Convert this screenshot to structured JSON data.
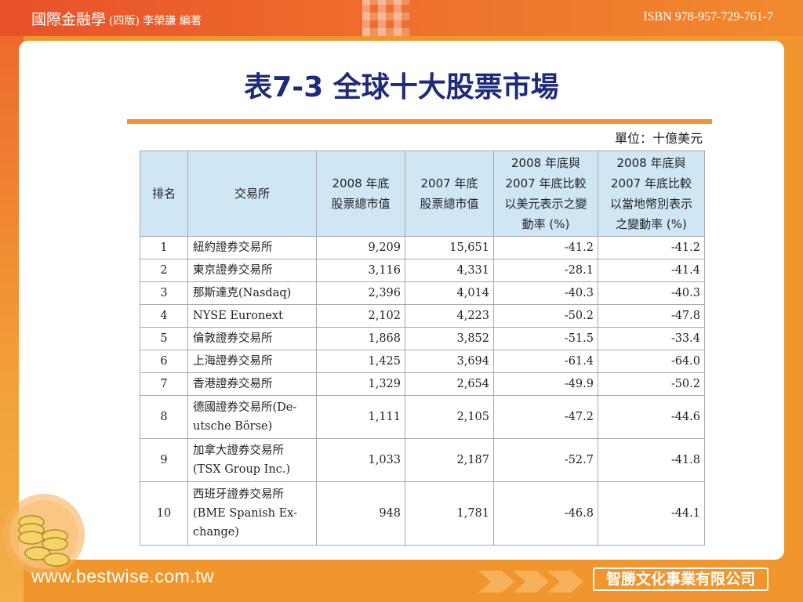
{
  "header": {
    "book_title": "國際金融學",
    "edition_author": "(四版) 李榮謙 編著",
    "isbn": "ISBN 978-957-729-761-7"
  },
  "title": "表7-3 全球十大股票市場",
  "unit_label": "單位：十億美元",
  "table": {
    "headers": {
      "rank": "排名",
      "exchange": "交易所",
      "cap2008": [
        "2008 年底",
        "股票總市值"
      ],
      "cap2007": [
        "2007 年底",
        "股票總市值"
      ],
      "usd_change": [
        "2008 年底與",
        "2007 年底比較",
        "以美元表示之變",
        "動率 (%)"
      ],
      "local_change": [
        "2008 年底與",
        "2007 年底比較",
        "以當地幣別表示",
        "之變動率 (%)"
      ]
    },
    "rows": [
      {
        "rank": "1",
        "exchange": "紐約證券交易所",
        "cap2008": "9,209",
        "cap2007": "15,651",
        "usd_change": "-41.2",
        "local_change": "-41.2"
      },
      {
        "rank": "2",
        "exchange": "東京證券交易所",
        "cap2008": "3,116",
        "cap2007": "4,331",
        "usd_change": "-28.1",
        "local_change": "-41.4"
      },
      {
        "rank": "3",
        "exchange": "那斯達克(Nasdaq)",
        "cap2008": "2,396",
        "cap2007": "4,014",
        "usd_change": "-40.3",
        "local_change": "-40.3"
      },
      {
        "rank": "4",
        "exchange": "NYSE Euronext",
        "cap2008": "2,102",
        "cap2007": "4,223",
        "usd_change": "-50.2",
        "local_change": "-47.8"
      },
      {
        "rank": "5",
        "exchange": "倫敦證券交易所",
        "cap2008": "1,868",
        "cap2007": "3,852",
        "usd_change": "-51.5",
        "local_change": "-33.4"
      },
      {
        "rank": "6",
        "exchange": "上海證券交易所",
        "cap2008": "1,425",
        "cap2007": "3,694",
        "usd_change": "-61.4",
        "local_change": "-64.0"
      },
      {
        "rank": "7",
        "exchange": "香港證券交易所",
        "cap2008": "1,329",
        "cap2007": "2,654",
        "usd_change": "-49.9",
        "local_change": "-50.2"
      },
      {
        "rank": "8",
        "exchange": [
          "德國證券交易所(De-",
          "utsche Börse)"
        ],
        "cap2008": "1,111",
        "cap2007": "2,105",
        "usd_change": "-47.2",
        "local_change": "-44.6"
      },
      {
        "rank": "9",
        "exchange": [
          "加拿大證券交易所",
          "(TSX Group Inc.)"
        ],
        "cap2008": "1,033",
        "cap2007": "2,187",
        "usd_change": "-52.7",
        "local_change": "-41.8"
      },
      {
        "rank": "10",
        "exchange": [
          "西班牙證券交易所",
          "(BME Spanish Ex-",
          "change)"
        ],
        "cap2008": "948",
        "cap2007": "1,781",
        "usd_change": "-46.8",
        "local_change": "-44.1"
      }
    ]
  },
  "footer": {
    "website": "www.bestwise.com.tw",
    "company": "智勝文化事業有限公司"
  },
  "colors": {
    "orange": "#f0962c",
    "header_red": "#e8502a",
    "title_blue": "#1e2a7a",
    "table_header_bg": "#cfe7f5"
  }
}
